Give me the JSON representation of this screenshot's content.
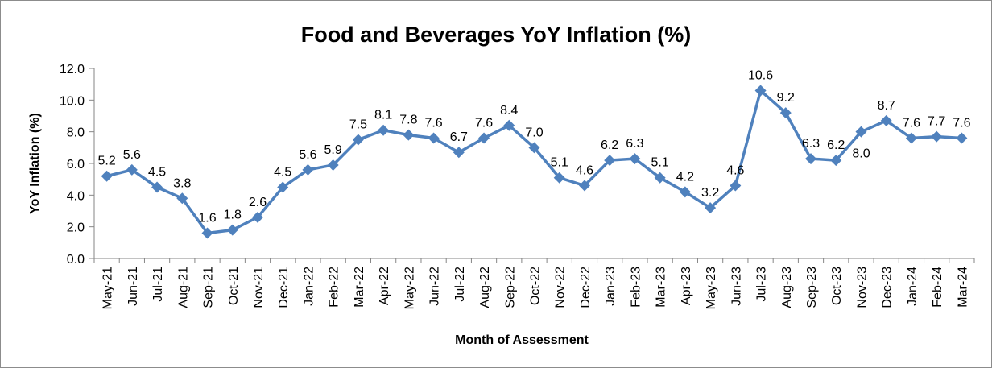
{
  "chart_data": {
    "type": "line",
    "title": "Food and Beverages YoY Inflation (%)",
    "x_label": "Month of Assessment",
    "y_label": "YoY Inflation (%)",
    "categories": [
      "May-21",
      "Jun-21",
      "Jul-21",
      "Aug-21",
      "Sep-21",
      "Oct-21",
      "Nov-21",
      "Dec-21",
      "Jan-22",
      "Feb-22",
      "Mar-22",
      "Apr-22",
      "May-22",
      "Jun-22",
      "Jul-22",
      "Aug-22",
      "Sep-22",
      "Oct-22",
      "Nov-22",
      "Dec-22",
      "Jan-23",
      "Feb-23",
      "Mar-23",
      "Apr-23",
      "May-23",
      "Jun-23",
      "Jul-23",
      "Aug-23",
      "Sep-23",
      "Oct-23",
      "Nov-23",
      "Dec-23",
      "Jan-24",
      "Feb-24",
      "Mar-24"
    ],
    "values": [
      5.2,
      5.6,
      4.5,
      3.8,
      1.6,
      1.8,
      2.6,
      4.5,
      5.6,
      5.9,
      7.5,
      8.1,
      7.8,
      7.6,
      6.7,
      7.6,
      8.4,
      7.0,
      5.1,
      4.6,
      6.2,
      6.3,
      5.1,
      4.2,
      3.2,
      4.6,
      10.6,
      9.2,
      6.3,
      6.2,
      8.0,
      8.7,
      7.6,
      7.7,
      7.6
    ],
    "value_labels": [
      "5.2",
      "5.6",
      "4.5",
      "3.8",
      "1.6",
      "1.8",
      "2.6",
      "4.5",
      "5.6",
      "5.9",
      "7.5",
      "8.1",
      "7.8",
      "7.6",
      "6.7",
      "7.6",
      "8.4",
      "7.0",
      "5.1",
      "4.6",
      "6.2",
      "6.3",
      "5.1",
      "4.2",
      "3.2",
      "4.6",
      "10.6",
      "9.2",
      "6.3",
      "6.2",
      "8.0",
      "8.7",
      "7.6",
      "7.7",
      "7.6"
    ],
    "color": "#4f81bd",
    "ylim": [
      0,
      12
    ],
    "yticks": [
      {
        "value": 0,
        "label": "0.0"
      },
      {
        "value": 2,
        "label": "2.0"
      },
      {
        "value": 4,
        "label": "4.0"
      },
      {
        "value": 6,
        "label": "6.0"
      },
      {
        "value": 8,
        "label": "8.0"
      },
      {
        "value": 10,
        "label": "10.0"
      },
      {
        "value": 12,
        "label": "12.0"
      }
    ],
    "grid": false
  }
}
